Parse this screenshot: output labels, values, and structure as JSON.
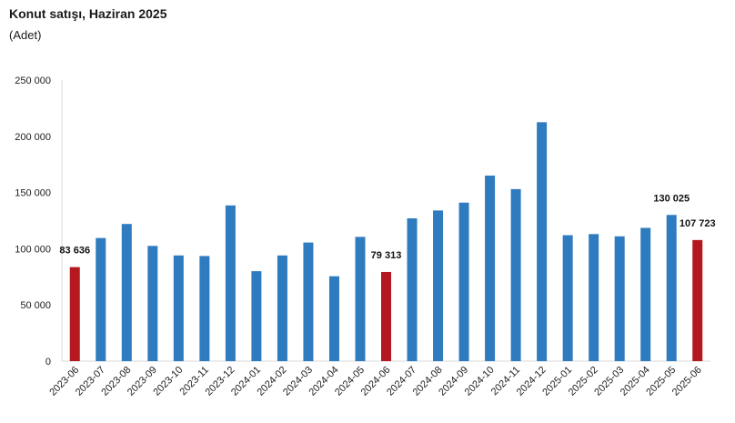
{
  "chart_data": {
    "type": "bar",
    "title": "Konut satışı, Haziran 2025",
    "subtitle": "(Adet)",
    "xlabel": "",
    "ylabel": "",
    "ylim": [
      0,
      250000
    ],
    "yticks": [
      0,
      50000,
      100000,
      150000,
      200000,
      250000
    ],
    "ytick_labels": [
      "0",
      "50 000",
      "100 000",
      "150 000",
      "200 000",
      "250 000"
    ],
    "categories": [
      "2023-06",
      "2023-07",
      "2023-08",
      "2023-09",
      "2023-10",
      "2023-11",
      "2023-12",
      "2024-01",
      "2024-02",
      "2024-03",
      "2024-04",
      "2024-05",
      "2024-06",
      "2024-07",
      "2024-08",
      "2024-09",
      "2024-10",
      "2024-11",
      "2024-12",
      "2025-01",
      "2025-02",
      "2025-03",
      "2025-04",
      "2025-05",
      "2025-06"
    ],
    "values": [
      83636,
      109500,
      122000,
      102500,
      94000,
      93500,
      138500,
      80000,
      94000,
      105500,
      75500,
      110500,
      79313,
      127000,
      134000,
      141000,
      165000,
      153000,
      212500,
      112000,
      113000,
      111000,
      118500,
      130025,
      107723
    ],
    "highlight_indices": [
      0,
      12,
      24
    ],
    "data_labels": [
      {
        "index": 0,
        "text": "83 636"
      },
      {
        "index": 12,
        "text": "79 313"
      },
      {
        "index": 23,
        "text": "130 025"
      },
      {
        "index": 24,
        "text": "107 723"
      }
    ],
    "colors": {
      "bar": "#2e7bbf",
      "highlight": "#b3191e",
      "axis": "#d9d9d9"
    },
    "grid": false,
    "legend": "none"
  }
}
